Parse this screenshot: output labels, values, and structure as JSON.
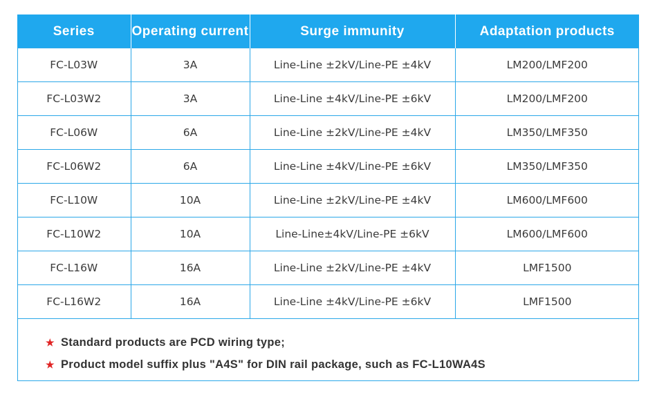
{
  "table": {
    "headers": [
      "Series",
      "Operating current",
      "Surge immunity",
      "Adaptation products"
    ],
    "rows": [
      [
        "FC-L03W",
        "3A",
        "Line-Line ±2kV/Line-PE ±4kV",
        "LM200/LMF200"
      ],
      [
        "FC-L03W2",
        "3A",
        "Line-Line ±4kV/Line-PE ±6kV",
        "LM200/LMF200"
      ],
      [
        "FC-L06W",
        "6A",
        "Line-Line ±2kV/Line-PE ±4kV",
        "LM350/LMF350"
      ],
      [
        "FC-L06W2",
        "6A",
        "Line-Line ±4kV/Line-PE ±6kV",
        "LM350/LMF350"
      ],
      [
        "FC-L10W",
        "10A",
        "Line-Line ±2kV/Line-PE ±4kV",
        "LM600/LMF600"
      ],
      [
        "FC-L10W2",
        "10A",
        "Line-Line±4kV/Line-PE ±6kV",
        "LM600/LMF600"
      ],
      [
        "FC-L16W",
        "16A",
        "Line-Line ±2kV/Line-PE ±4kV",
        "LMF1500"
      ],
      [
        "FC-L16W2",
        "16A",
        "Line-Line ±4kV/Line-PE ±6kV",
        "LMF1500"
      ]
    ]
  },
  "notes": {
    "bullet": "★",
    "items": [
      "Standard products are PCD wiring type;",
      "Product model suffix plus \"A4S\" for DIN rail package, such as FC-L10WA4S"
    ]
  },
  "colors": {
    "header_bg": "#1fa8ee",
    "border": "#2aa7e8",
    "star": "#e02424"
  }
}
